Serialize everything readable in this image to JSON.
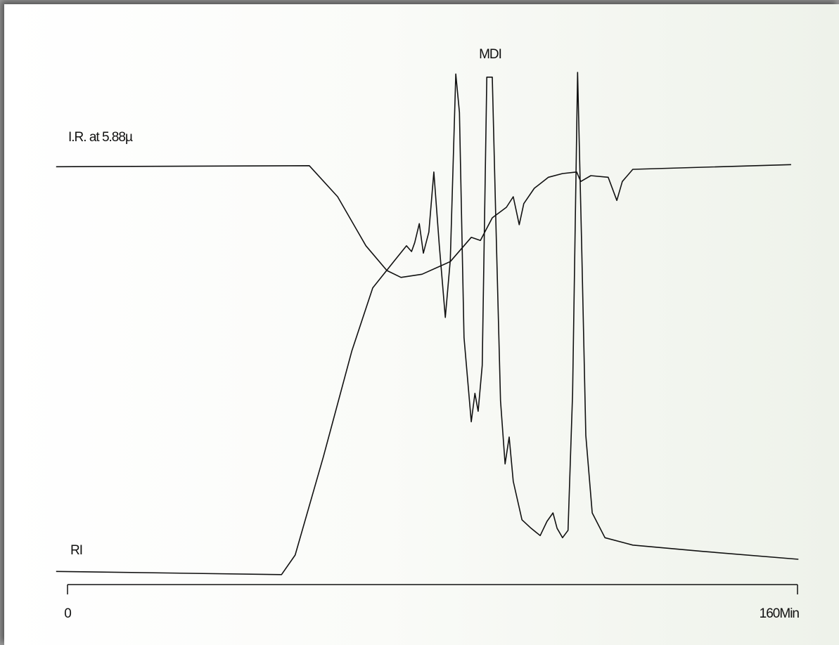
{
  "chart_data": {
    "type": "line",
    "annotations": [
      "MDI"
    ],
    "xlim": [
      0,
      160
    ],
    "xticks": [
      0,
      {
        "value": 160,
        "label": "160Min"
      }
    ],
    "ylim": [
      0,
      100
    ],
    "series": [
      {
        "name": "I.R. at 5.88µ",
        "color": "#111111",
        "x": [
          -2.5,
          53.0,
          59.2,
          65.4,
          70.0,
          73.1,
          77.7,
          83.9,
          88.5,
          90.5,
          93.1,
          96.2,
          97.7,
          99.0,
          100.0,
          102.3,
          105.4,
          108.5,
          111.6,
          112.5,
          114.7,
          118.5,
          120.4,
          121.6,
          123.9,
          139.3,
          158.6
        ],
        "values": [
          81.7,
          81.9,
          76.0,
          66.7,
          62.0,
          60.7,
          61.3,
          63.7,
          68.3,
          67.7,
          72.0,
          74.0,
          76.0,
          70.7,
          74.7,
          77.6,
          79.7,
          80.4,
          80.7,
          78.9,
          80.0,
          79.7,
          75.3,
          78.9,
          81.2,
          81.6,
          82.1
        ]
      },
      {
        "name": "RI",
        "color": "#111111",
        "x": [
          -2.5,
          46.9,
          49.9,
          56.1,
          62.3,
          66.9,
          71.5,
          74.3,
          75.4,
          76.1,
          77.1,
          78.0,
          79.2,
          80.3,
          81.5,
          82.8,
          83.9,
          85.1,
          85.9,
          86.9,
          88.5,
          89.3,
          90.0,
          90.9,
          91.9,
          93.1,
          93.9,
          94.9,
          95.9,
          96.8,
          97.7,
          99.6,
          101.6,
          103.6,
          105.1,
          106.4,
          107.3,
          108.5,
          109.7,
          110.7,
          111.8,
          112.7,
          113.6,
          115.0,
          117.8,
          123.9,
          139.3,
          160.2
        ],
        "values": [
          4.9,
          4.3,
          8.0,
          26.7,
          46.7,
          58.7,
          63.7,
          66.7,
          65.6,
          67.3,
          70.9,
          65.3,
          69.3,
          80.7,
          66.7,
          53.1,
          64.0,
          99.3,
          92.0,
          49.3,
          33.3,
          38.7,
          35.3,
          44.0,
          98.7,
          98.7,
          70.7,
          37.3,
          25.3,
          30.4,
          22.0,
          14.7,
          13.1,
          11.7,
          14.4,
          16.0,
          13.1,
          11.3,
          12.7,
          38.7,
          99.6,
          66.7,
          30.7,
          16.0,
          11.3,
          9.9,
          8.7,
          7.2
        ]
      }
    ]
  }
}
